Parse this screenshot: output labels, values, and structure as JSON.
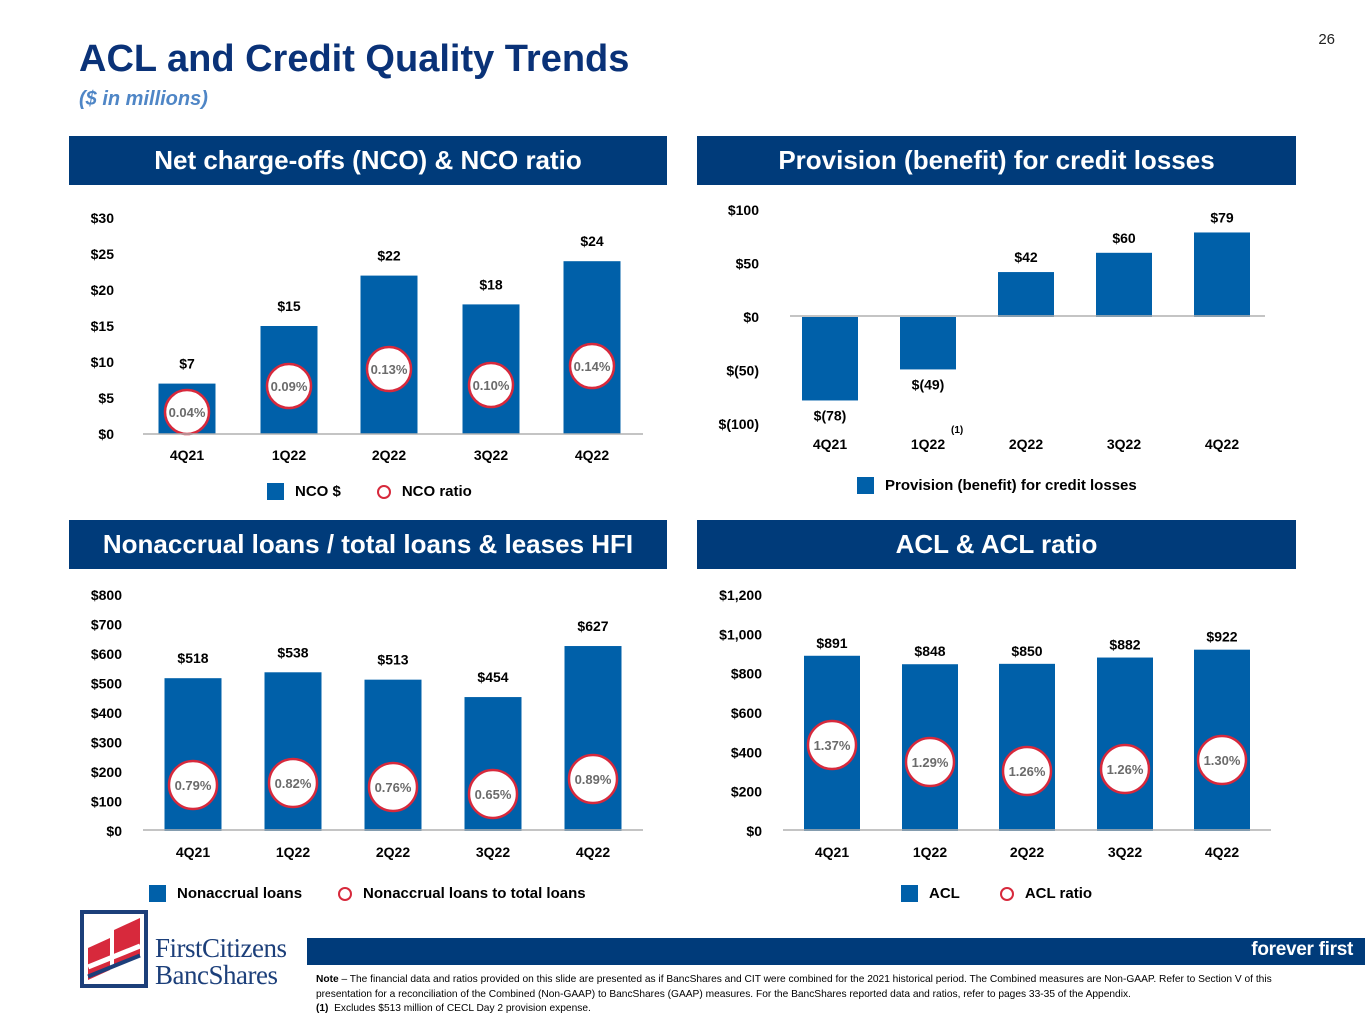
{
  "page": {
    "title": "ACL and Credit Quality Trends",
    "subtitle": "($ in millions)",
    "page_number": "26",
    "tagline": "forever first",
    "logo": {
      "line1": "FirstCitizens",
      "line2": "BancShares"
    },
    "note_label": "Note",
    "note_text": " – The financial data and ratios provided on this slide are presented as if BancShares and CIT were combined for the 2021 historical period. The Combined measures are Non-GAAP. Refer to Section V of this presentation for a reconciliation of the Combined (Non-GAAP) to BancShares (GAAP) measures. For the BancShares reported data and ratios, refer to pages 33-35 of the Appendix.",
    "footnote_marker": "(1)",
    "footnote_text": "Excludes $513 million of CECL Day 2 provision expense."
  },
  "colors": {
    "bar": "#0060a9",
    "header": "#003b7a",
    "circle": "#d7293c",
    "pct_text": "#6b6b6b"
  },
  "chart_data": [
    {
      "id": "nco",
      "type": "bar",
      "title": "Net charge-offs (NCO) & NCO ratio",
      "categories": [
        "4Q21",
        "1Q22",
        "2Q22",
        "3Q22",
        "4Q22"
      ],
      "series": [
        {
          "name": "NCO $",
          "values": [
            7,
            15,
            22,
            18,
            24
          ],
          "labels": [
            "$7",
            "$15",
            "$22",
            "$18",
            "$24"
          ]
        },
        {
          "name": "NCO ratio",
          "values": [
            0.04,
            0.09,
            0.13,
            0.1,
            0.14
          ],
          "labels": [
            "0.04%",
            "0.09%",
            "0.13%",
            "0.10%",
            "0.14%"
          ]
        }
      ],
      "yticks": [
        "$0",
        "$5",
        "$10",
        "$15",
        "$20",
        "$25",
        "$30"
      ],
      "ylim": [
        0,
        30
      ],
      "legend": [
        "NCO $",
        "NCO ratio"
      ]
    },
    {
      "id": "provision",
      "type": "bar",
      "title": "Provision (benefit) for credit losses",
      "categories": [
        "4Q21",
        "1Q22",
        "2Q22",
        "3Q22",
        "4Q22"
      ],
      "series": [
        {
          "name": "Provision (benefit) for credit losses",
          "values": [
            -78,
            -49,
            42,
            60,
            79
          ],
          "labels": [
            "$(78)",
            "$(49)",
            "$42",
            "$60",
            "$79"
          ]
        }
      ],
      "yticks": [
        "$(100)",
        "$(50)",
        "$0",
        "$50",
        "$100"
      ],
      "ylim": [
        -100,
        100
      ],
      "footnote_category": "1Q22",
      "legend": [
        "Provision (benefit) for credit losses"
      ]
    },
    {
      "id": "nonaccrual",
      "type": "bar",
      "title": "Nonaccrual loans / total loans & leases HFI",
      "categories": [
        "4Q21",
        "1Q22",
        "2Q22",
        "3Q22",
        "4Q22"
      ],
      "series": [
        {
          "name": "Nonaccrual loans",
          "values": [
            518,
            538,
            513,
            454,
            627
          ],
          "labels": [
            "$518",
            "$538",
            "$513",
            "$454",
            "$627"
          ]
        },
        {
          "name": "Nonaccrual loans to total loans",
          "values": [
            0.79,
            0.82,
            0.76,
            0.65,
            0.89
          ],
          "labels": [
            "0.79%",
            "0.82%",
            "0.76%",
            "0.65%",
            "0.89%"
          ]
        }
      ],
      "yticks": [
        "$0",
        "$100",
        "$200",
        "$300",
        "$400",
        "$500",
        "$600",
        "$700",
        "$800"
      ],
      "ylim": [
        0,
        800
      ],
      "legend": [
        "Nonaccrual loans",
        "Nonaccrual loans to total loans"
      ]
    },
    {
      "id": "acl",
      "type": "bar",
      "title": "ACL & ACL ratio",
      "categories": [
        "4Q21",
        "1Q22",
        "2Q22",
        "3Q22",
        "4Q22"
      ],
      "series": [
        {
          "name": "ACL",
          "values": [
            891,
            848,
            850,
            882,
            922
          ],
          "labels": [
            "$891",
            "$848",
            "$850",
            "$882",
            "$922"
          ]
        },
        {
          "name": "ACL ratio",
          "values": [
            1.37,
            1.29,
            1.26,
            1.26,
            1.3
          ],
          "labels": [
            "1.37%",
            "1.29%",
            "1.26%",
            "1.26%",
            "1.30%"
          ]
        }
      ],
      "yticks": [
        "$0",
        "$200",
        "$400",
        "$600",
        "$800",
        "$1,000",
        "$1,200"
      ],
      "ylim": [
        0,
        1200
      ],
      "legend": [
        "ACL",
        "ACL ratio"
      ]
    }
  ]
}
